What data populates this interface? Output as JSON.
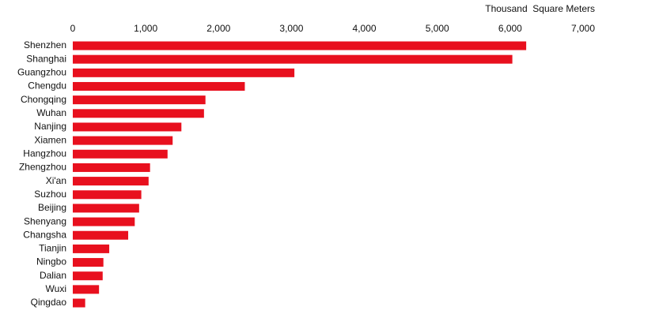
{
  "chart_data": {
    "type": "hbar",
    "x_axis_label": "Thousand  Square Meters",
    "categories": [
      "Shenzhen",
      "Shanghai",
      "Guangzhou",
      "Chengdu",
      "Chongqing",
      "Wuhan",
      "Nanjing",
      "Xiamen",
      "Hangzhou",
      "Zhengzhou",
      "Xi'an",
      "Suzhou",
      "Beijing",
      "Shenyang",
      "Changsha",
      "Tianjin",
      "Ningbo",
      "Dalian",
      "Wuxi",
      "Qingdao"
    ],
    "values": [
      6220,
      6030,
      3040,
      2360,
      1820,
      1800,
      1490,
      1370,
      1300,
      1060,
      1040,
      940,
      910,
      850,
      760,
      500,
      420,
      410,
      360,
      170
    ],
    "color": "#e8101e",
    "xlim": [
      0,
      7000
    ],
    "xticks": [
      0,
      {
        "value": 1000,
        "label": "1,000"
      },
      {
        "value": 2000,
        "label": "2,000"
      },
      {
        "value": 3000,
        "label": "3,000"
      },
      {
        "value": 4000,
        "label": "4,000"
      },
      {
        "value": 5000,
        "label": "5,000"
      },
      {
        "value": 6000,
        "label": "6,000"
      },
      {
        "value": 7000,
        "label": "7,000"
      }
    ],
    "grid": false
  }
}
